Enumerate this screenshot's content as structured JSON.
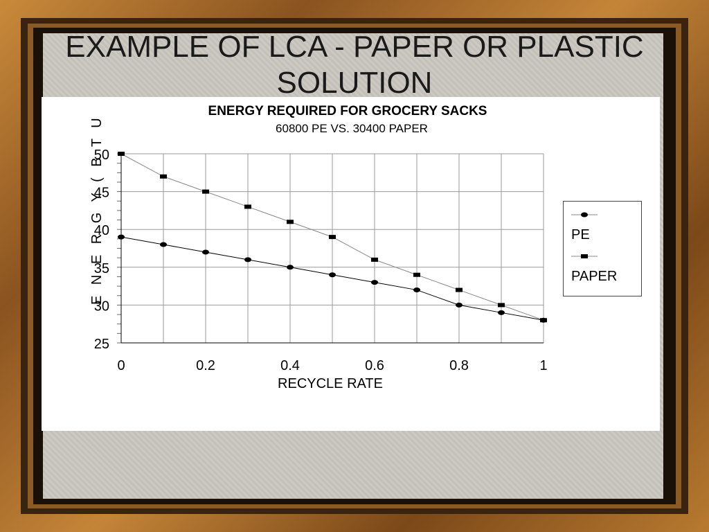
{
  "slide_title": "EXAMPLE OF LCA - PAPER OR PLASTIC SOLUTION",
  "chart_data": {
    "type": "line",
    "title": "ENERGY REQUIRED FOR GROCERY SACKS",
    "subtitle": "60800 PE VS. 30400 PAPER",
    "xlabel": "RECYCLE RATE",
    "ylabel": "E N E R G Y   ( B T U",
    "x": [
      0,
      0.1,
      0.2,
      0.3,
      0.4,
      0.5,
      0.6,
      0.7,
      0.8,
      0.9,
      1
    ],
    "xlim": [
      0,
      1
    ],
    "ylim": [
      25,
      50
    ],
    "xticks": [
      "0",
      "0.2",
      "0.4",
      "0.6",
      "0.8",
      "1"
    ],
    "xtick_values": [
      0,
      0.2,
      0.4,
      0.6,
      0.8,
      1
    ],
    "yticks": [
      "25",
      "30",
      "35",
      "40",
      "45",
      "50"
    ],
    "ytick_values": [
      25,
      30,
      35,
      40,
      45,
      50
    ],
    "grid": true,
    "legend_position": "right",
    "series": [
      {
        "name": "PE",
        "marker": "circle",
        "color": "#000000",
        "values": [
          39,
          38,
          37,
          36,
          35,
          34,
          33,
          32,
          30,
          29,
          28
        ]
      },
      {
        "name": "PAPER",
        "marker": "square",
        "color": "#000000",
        "values": [
          50,
          47,
          45,
          43,
          41,
          39,
          36,
          34,
          32,
          30,
          28
        ]
      }
    ]
  }
}
